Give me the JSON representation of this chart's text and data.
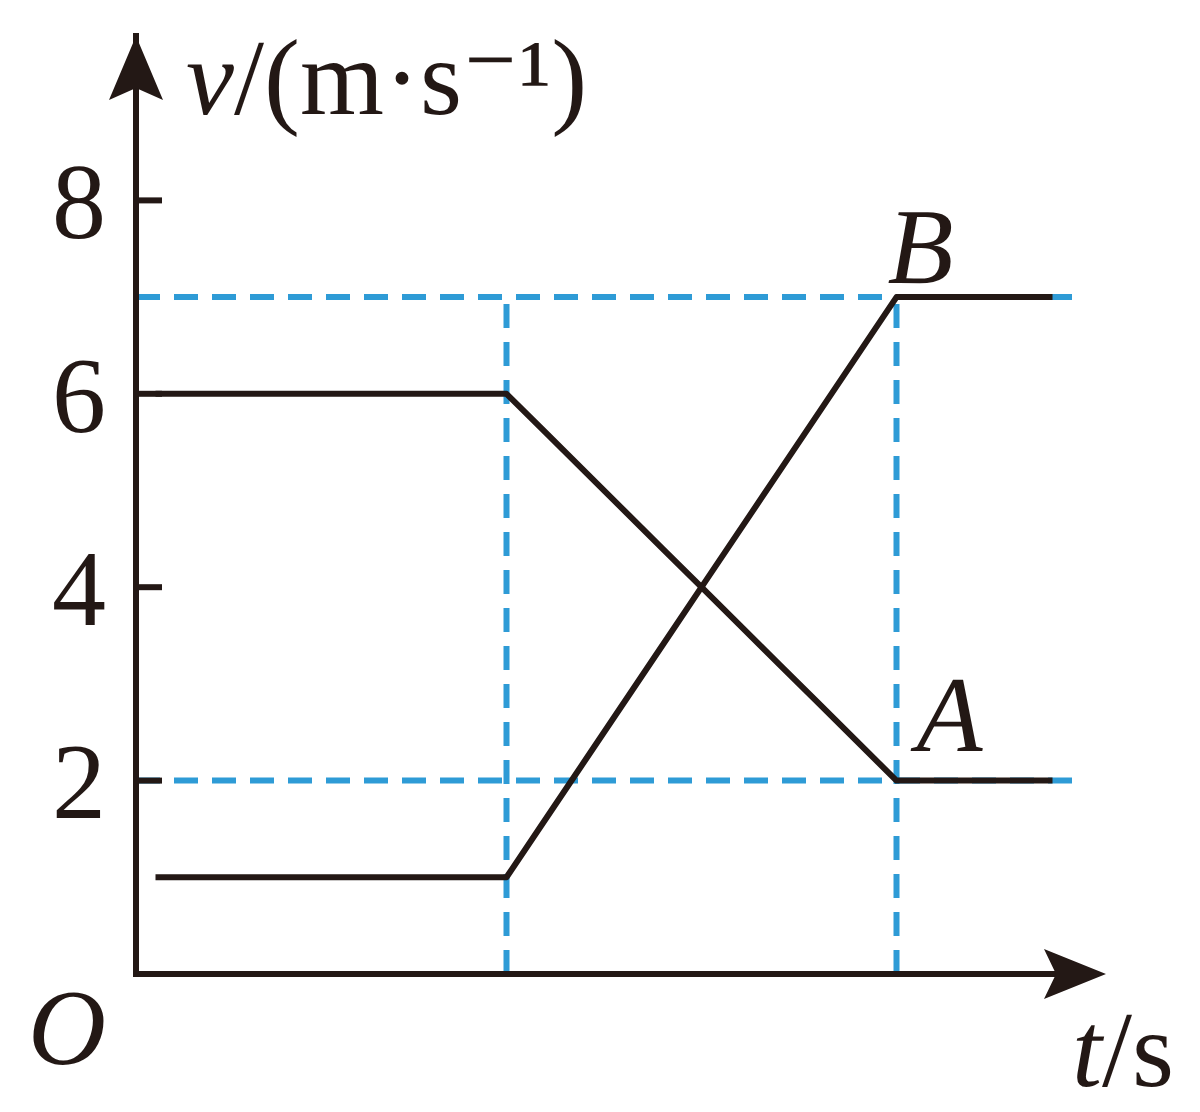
{
  "chart_data": {
    "type": "line",
    "xlabel": "t/s",
    "ylabel": "v/(m·s⁻¹)",
    "categories": [
      null,
      null,
      null,
      null,
      null,
      null,
      null,
      null,
      null,
      null,
      null,
      null,
      null,
      null,
      null,
      null,
      null,
      null,
      null,
      null,
      null,
      null,
      null,
      null
    ],
    "series": [
      {
        "name": "B",
        "color": "#231815",
        "values": [
          1,
          1,
          1,
          1,
          1,
          1,
          1,
          1,
          1,
          1,
          1.6,
          2.2,
          2.8,
          3.4,
          4,
          4.6,
          5.2,
          5.8,
          6.4,
          7,
          7,
          7,
          7,
          7
        ]
      },
      {
        "name": "A",
        "color": "#231815",
        "values": [
          6,
          6,
          6,
          6,
          6,
          6,
          6,
          6,
          6,
          6,
          5.6,
          5.2,
          4.8,
          4.4,
          4,
          3.6,
          3.2,
          2.8,
          2.4,
          2,
          2,
          2,
          2,
          2
        ]
      }
    ],
    "ylim": [
      0,
      9.7
    ],
    "yticks": [
      2,
      4,
      6,
      8
    ],
    "tick_labels": "y",
    "line_style": "solid",
    "ref_lines": [
      {
        "axis": "y",
        "value": 7,
        "color": "#2e9bd6",
        "line_style": "dashed"
      },
      {
        "axis": "y",
        "value": 2,
        "color": "#2e9bd6",
        "line_style": "dashed"
      }
    ],
    "annotations": [
      "O"
    ]
  }
}
